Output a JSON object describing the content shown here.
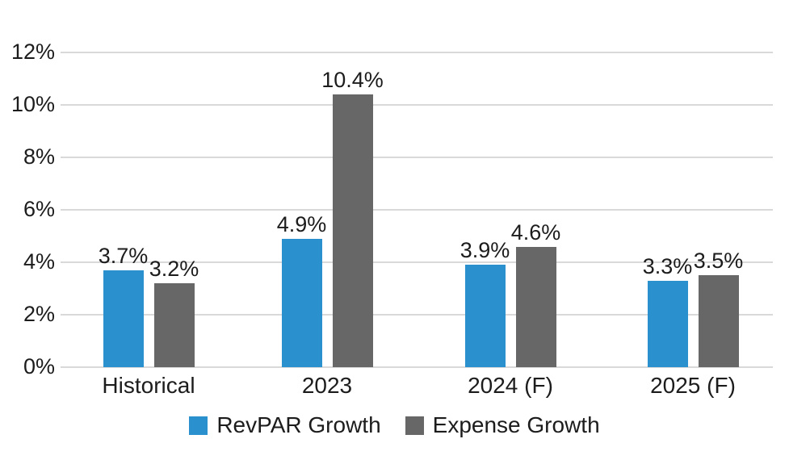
{
  "chart_data": {
    "type": "bar",
    "categories": [
      "Historical",
      "2023",
      "2024 (F)",
      "2025 (F)"
    ],
    "series": [
      {
        "name": "RevPAR Growth",
        "color": "#2a90ce",
        "values": [
          3.7,
          4.9,
          3.9,
          3.3
        ],
        "data_labels": [
          "3.7%",
          "4.9%",
          "3.9%",
          "3.3%"
        ]
      },
      {
        "name": "Expense Growth",
        "color": "#676767",
        "values": [
          3.2,
          10.4,
          4.6,
          3.5
        ],
        "data_labels": [
          "3.2%",
          "10.4%",
          "4.6%",
          "3.5%"
        ]
      }
    ],
    "title": "",
    "xlabel": "",
    "ylabel": "",
    "y_axis": {
      "min": 0,
      "max": 12,
      "tick_values": [
        0,
        2,
        4,
        6,
        8,
        10,
        12
      ],
      "tick_labels": [
        "0%",
        "2%",
        "4%",
        "6%",
        "8%",
        "10%",
        "12%"
      ]
    },
    "grid": true,
    "legend_position": "bottom",
    "colors": {
      "grid": "#d9d9d9",
      "text": "#1c1c1c",
      "background": "#ffffff"
    }
  },
  "legend": {
    "items": [
      {
        "label": "RevPAR Growth",
        "color": "#2a90ce"
      },
      {
        "label": "Expense Growth",
        "color": "#676767"
      }
    ]
  }
}
